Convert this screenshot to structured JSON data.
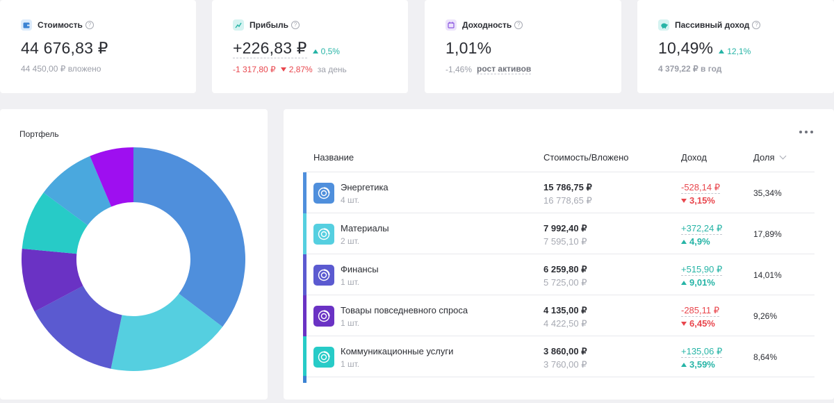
{
  "kpis": [
    {
      "label": "Стоимость",
      "icon": "wallet-icon",
      "icon_bg": "#dcebfb",
      "icon_color": "#3b83d3",
      "value": "44 676,83 ₽",
      "sub": "44 450,00 ₽ вложено"
    },
    {
      "label": "Прибыль",
      "icon": "chart-line-icon",
      "icon_bg": "#d5f3f1",
      "icon_color": "#26b4a6",
      "value": "+226,83 ₽",
      "delta": "0,5%",
      "sub_value": "-1 317,80 ₽",
      "sub_pct": "2,87%",
      "sub_suffix": "за день"
    },
    {
      "label": "Доходность",
      "icon": "calendar-icon",
      "icon_bg": "#ece3fb",
      "icon_color": "#8a56e0",
      "value": "1,01%",
      "sub_value": "-1,46%",
      "sub_link": "рост активов"
    },
    {
      "label": "Пассивный доход",
      "icon": "piggy-bank-icon",
      "icon_bg": "#d5f3f1",
      "icon_color": "#26b4a6",
      "value": "10,49%",
      "delta": "12,1%",
      "sub": "4 379,22 ₽ в год"
    }
  ],
  "portfolio": {
    "title": "Портфель"
  },
  "table": {
    "headers": {
      "name": "Название",
      "value": "Стоимость/Вложено",
      "income": "Доход",
      "share": "Доля"
    },
    "rows": [
      {
        "name": "Энергетика",
        "qty": "4 шт.",
        "value": "15 786,75 ₽",
        "invested": "16 778,65 ₽",
        "income": "-528,14 ₽",
        "income_pct": "3,15%",
        "trend": "down",
        "share": "35,34%",
        "color": "#4f8fdc"
      },
      {
        "name": "Материалы",
        "qty": "2 шт.",
        "value": "7 992,40 ₽",
        "invested": "7 595,10 ₽",
        "income": "+372,24 ₽",
        "income_pct": "4,9%",
        "trend": "up",
        "share": "17,89%",
        "color": "#55cfe0"
      },
      {
        "name": "Финансы",
        "qty": "1 шт.",
        "value": "6 259,80 ₽",
        "invested": "5 725,00 ₽",
        "income": "+515,90 ₽",
        "income_pct": "9,01%",
        "trend": "up",
        "share": "14,01%",
        "color": "#5b5ad0"
      },
      {
        "name": "Товары повседневного спроса",
        "qty": "1 шт.",
        "value": "4 135,00 ₽",
        "invested": "4 422,50 ₽",
        "income": "-285,11 ₽",
        "income_pct": "6,45%",
        "trend": "down",
        "share": "9,26%",
        "color": "#6a32c4"
      },
      {
        "name": "Коммуникационные услуги",
        "qty": "1 шт.",
        "value": "3 860,00 ₽",
        "invested": "3 760,00 ₽",
        "income": "+135,06 ₽",
        "income_pct": "3,59%",
        "trend": "up",
        "share": "8,64%",
        "color": "#27cbc7"
      }
    ]
  },
  "chart_data": {
    "type": "pie",
    "variant": "donut",
    "categories": [
      "Энергетика",
      "Материалы",
      "Финансы",
      "Товары повседневного спроса",
      "Коммуникационные услуги",
      "",
      ""
    ],
    "values": [
      35.34,
      17.89,
      14.01,
      9.26,
      8.64,
      8.5,
      6.36
    ],
    "colors": [
      "#4f8fdc",
      "#55cfe0",
      "#5b5ad0",
      "#6a32c4",
      "#27cbc7",
      "#4aa8de",
      "#9e0ff0"
    ],
    "legend": "none"
  }
}
